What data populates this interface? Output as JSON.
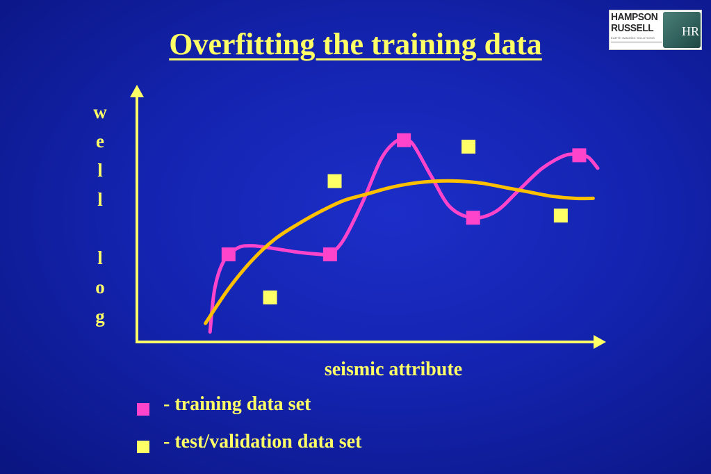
{
  "title": "Overfitting the training data",
  "logo": {
    "line1": "HAMPSON",
    "line2": "RUSSELL",
    "tagline": "EARTH IMAGING SOLUTIONS",
    "emblem": "HR"
  },
  "colors": {
    "background": "#1424b0",
    "text": "#ffff66",
    "training": "#ff44cc",
    "test": "#ffff66",
    "overfit_curve": "#ff44cc",
    "smooth_curve": "#ffc000"
  },
  "chart_data": {
    "type": "scatter",
    "xlabel": "seismic attribute",
    "ylabel_letters": [
      "w",
      "e",
      "l",
      "l",
      "",
      "l",
      "o",
      "g"
    ],
    "xlim": [
      0,
      10
    ],
    "ylim": [
      0,
      10
    ],
    "series": [
      {
        "name": "- training data set",
        "kind": "points",
        "points": [
          [
            2.0,
            4.0
          ],
          [
            4.2,
            4.0
          ],
          [
            5.8,
            9.3
          ],
          [
            7.3,
            5.7
          ],
          [
            9.6,
            8.6
          ]
        ]
      },
      {
        "name": "- test/validation data set",
        "kind": "points",
        "points": [
          [
            2.9,
            2.0
          ],
          [
            4.3,
            7.4
          ],
          [
            7.2,
            9.0
          ],
          [
            9.2,
            5.8
          ]
        ]
      },
      {
        "kind": "curve",
        "role": "overfit",
        "points": [
          [
            1.6,
            0.4
          ],
          [
            1.7,
            2.4
          ],
          [
            1.9,
            3.7
          ],
          [
            2.2,
            4.3
          ],
          [
            2.5,
            4.4
          ],
          [
            2.9,
            4.3
          ],
          [
            3.5,
            4.1
          ],
          [
            4.0,
            4.0
          ],
          [
            4.2,
            4.0
          ],
          [
            4.5,
            4.7
          ],
          [
            4.9,
            6.4
          ],
          [
            5.3,
            8.4
          ],
          [
            5.6,
            9.2
          ],
          [
            5.8,
            9.3
          ],
          [
            6.0,
            9.1
          ],
          [
            6.4,
            7.6
          ],
          [
            6.8,
            6.2
          ],
          [
            7.3,
            5.7
          ],
          [
            7.8,
            6.0
          ],
          [
            8.3,
            7.0
          ],
          [
            8.8,
            8.0
          ],
          [
            9.3,
            8.6
          ],
          [
            9.6,
            8.6
          ],
          [
            9.8,
            8.5
          ],
          [
            10.0,
            8.0
          ]
        ]
      },
      {
        "kind": "curve",
        "role": "smooth",
        "points": [
          [
            1.5,
            0.8
          ],
          [
            2.0,
            2.4
          ],
          [
            2.5,
            3.7
          ],
          [
            3.0,
            4.7
          ],
          [
            3.5,
            5.4
          ],
          [
            4.0,
            6.0
          ],
          [
            4.5,
            6.5
          ],
          [
            5.0,
            6.8
          ],
          [
            5.5,
            7.1
          ],
          [
            6.0,
            7.3
          ],
          [
            6.5,
            7.4
          ],
          [
            7.0,
            7.4
          ],
          [
            7.5,
            7.3
          ],
          [
            8.0,
            7.1
          ],
          [
            8.5,
            6.9
          ],
          [
            9.0,
            6.7
          ],
          [
            9.5,
            6.6
          ],
          [
            9.9,
            6.6
          ]
        ]
      }
    ]
  }
}
